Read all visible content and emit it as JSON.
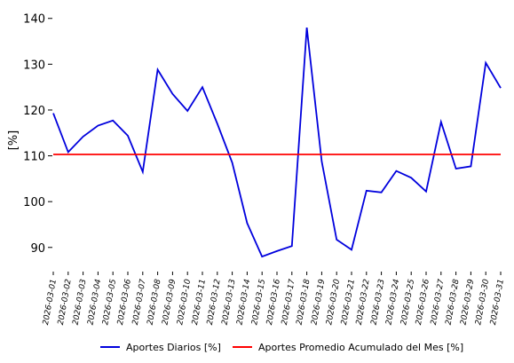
{
  "chart_data": {
    "type": "line",
    "title": "",
    "xlabel": "",
    "ylabel": "[%]",
    "x": [
      "2026-03-01",
      "2026-03-02",
      "2026-03-03",
      "2026-03-04",
      "2026-03-05",
      "2026-03-06",
      "2026-03-07",
      "2026-03-08",
      "2026-03-09",
      "2026-03-10",
      "2026-03-11",
      "2026-03-12",
      "2026-03-13",
      "2026-03-14",
      "2026-03-15",
      "2026-03-16",
      "2026-03-17",
      "2026-03-18",
      "2026-03-19",
      "2026-03-20",
      "2026-03-21",
      "2026-03-22",
      "2026-03-23",
      "2026-03-24",
      "2026-03-25",
      "2026-03-26",
      "2026-03-27",
      "2026-03-28",
      "2026-03-29",
      "2026-03-30",
      "2026-03-31"
    ],
    "yticks": [
      90,
      100,
      110,
      120,
      130,
      140
    ],
    "ylim": [
      85.5,
      141.5
    ],
    "grid": false,
    "legend_position": "bottom",
    "series": [
      {
        "name": "Aportes Diarios [%]",
        "color": "#0000dd",
        "values": [
          119.3,
          110.8,
          114.2,
          116.6,
          117.7,
          114.4,
          106.5,
          128.8,
          123.5,
          119.8,
          125.0,
          117.0,
          108.5,
          95.3,
          88.0,
          89.2,
          90.3,
          138.0,
          108.8,
          91.7,
          89.5,
          102.4,
          102.0,
          106.7,
          105.2,
          102.2,
          117.4,
          107.2,
          107.7,
          130.3,
          124.8
        ]
      },
      {
        "name": "Aportes Promedio Acumulado del Mes [%]",
        "color": "#ff0000",
        "values": [
          110.3,
          110.3,
          110.3,
          110.3,
          110.3,
          110.3,
          110.3,
          110.3,
          110.3,
          110.3,
          110.3,
          110.3,
          110.3,
          110.3,
          110.3,
          110.3,
          110.3,
          110.3,
          110.3,
          110.3,
          110.3,
          110.3,
          110.3,
          110.3,
          110.3,
          110.3,
          110.3,
          110.3,
          110.3,
          110.3,
          110.3
        ]
      }
    ]
  }
}
